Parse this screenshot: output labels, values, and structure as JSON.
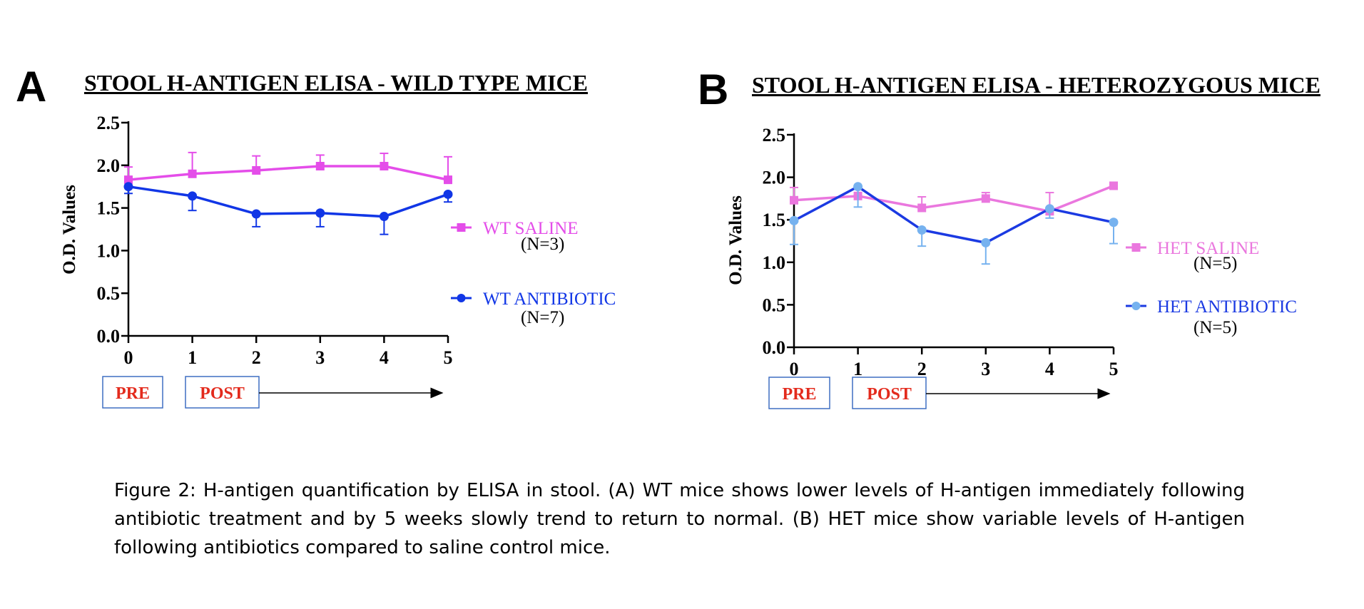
{
  "panels": {
    "a": {
      "letter": "A",
      "title": "STOOL H-ANTIGEN ELISA - WILD TYPE MICE"
    },
    "b": {
      "letter": "B",
      "title": "STOOL H-ANTIGEN ELISA - HETEROZYGOUS MICE"
    }
  },
  "chart_data": [
    {
      "type": "line",
      "title": "STOOL H-ANTIGEN ELISA - WILD TYPE MICE",
      "ylabel": "O.D. Values",
      "xlabel": "",
      "x": [
        0,
        1,
        2,
        3,
        4,
        5
      ],
      "x_ticks": [
        "0",
        "1",
        "2",
        "3",
        "4",
        "5"
      ],
      "y_ticks": [
        "0.0",
        "0.5",
        "1.0",
        "1.5",
        "2.0",
        "2.5"
      ],
      "ylim": [
        0,
        2.5
      ],
      "xlim": [
        0,
        5
      ],
      "grid": false,
      "legend_position": "right",
      "series": [
        {
          "name": "WT SALINE",
          "n_label": "(N=3)",
          "color": "#e44de9",
          "marker": "square",
          "values": [
            1.83,
            1.9,
            1.94,
            1.99,
            1.99,
            1.83
          ],
          "error": [
            0.15,
            0.25,
            0.17,
            0.13,
            0.15,
            0.27
          ]
        },
        {
          "name": "WT ANTIBIOTIC",
          "n_label": "(N=7)",
          "color": "#1136e6",
          "marker": "circle",
          "values": [
            1.75,
            1.64,
            1.43,
            1.44,
            1.4,
            1.66
          ],
          "error": [
            0.08,
            0.17,
            0.15,
            0.16,
            0.21,
            0.09
          ]
        }
      ],
      "annotations": {
        "pre": "PRE",
        "post": "POST"
      }
    },
    {
      "type": "line",
      "title": "STOOL H-ANTIGEN ELISA - HETEROZYGOUS MICE",
      "ylabel": "O.D. Values",
      "xlabel": "",
      "x": [
        0,
        1,
        2,
        3,
        4,
        5
      ],
      "x_ticks": [
        "0",
        "1",
        "2",
        "3",
        "4",
        "5"
      ],
      "y_ticks": [
        "0.0",
        "0.5",
        "1.0",
        "1.5",
        "2.0",
        "2.5"
      ],
      "ylim": [
        0,
        2.5
      ],
      "xlim": [
        0,
        5
      ],
      "grid": false,
      "legend_position": "right",
      "series": [
        {
          "name": "HET SALINE",
          "n_label": "(N=5)",
          "color": "#ea77de",
          "line_color": "#ea77de",
          "marker": "square",
          "values": [
            1.73,
            1.78,
            1.64,
            1.75,
            1.6,
            1.9
          ],
          "error": [
            0.15,
            0.08,
            0.13,
            0.07,
            0.22,
            0.04
          ]
        },
        {
          "name": "HET ANTIBIOTIC",
          "n_label": "(N=5)",
          "color": "#76b2ef",
          "line_color": "#1b3ae2",
          "marker": "circle",
          "values": [
            1.49,
            1.89,
            1.38,
            1.23,
            1.63,
            1.47
          ],
          "error": [
            0.28,
            0.24,
            0.19,
            0.25,
            0.11,
            0.25
          ]
        }
      ],
      "annotations": {
        "pre": "PRE",
        "post": "POST"
      }
    }
  ],
  "caption": "Figure 2: H-antigen quantification by ELISA in stool. (A) WT mice shows lower levels of H-antigen immediately following antibiotic treatment and by 5 weeks slowly trend to return to normal. (B) HET mice show variable levels of H-antigen following antibiotics compared to saline control mice."
}
